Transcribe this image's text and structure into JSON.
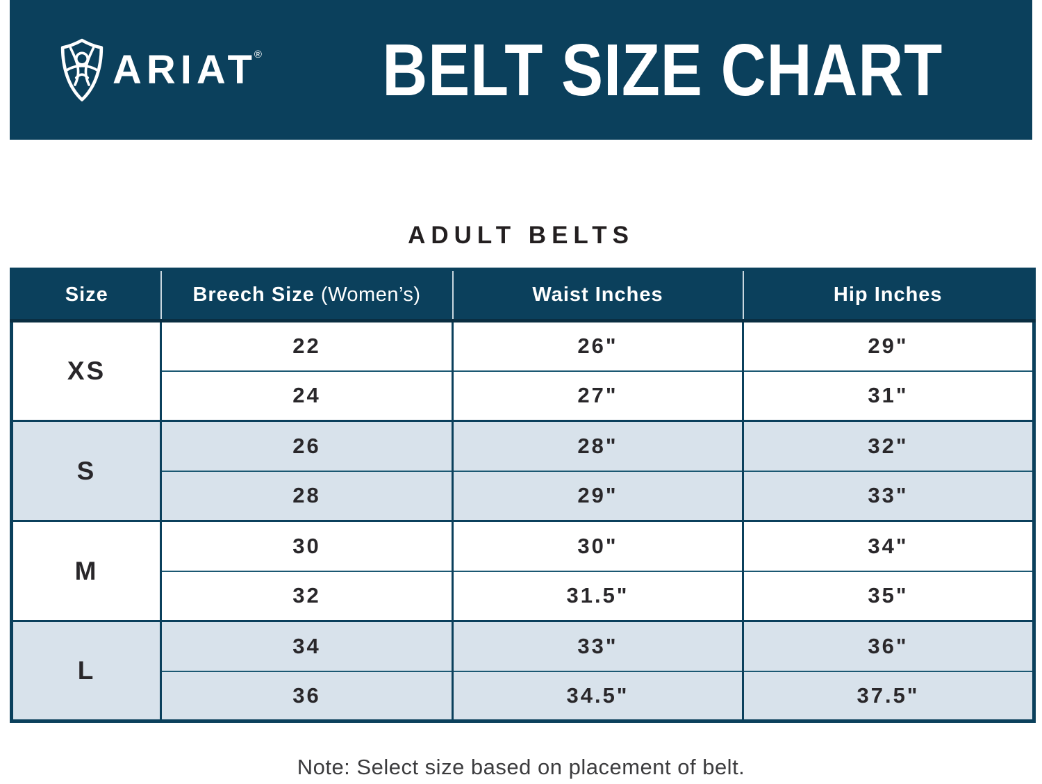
{
  "banner": {
    "brand": "ARIAT",
    "registered": "®",
    "title": "BELT SIZE CHART"
  },
  "section_title": "ADULT BELTS",
  "table": {
    "columns": [
      {
        "label": "Size"
      },
      {
        "label": "Breech Size",
        "sub": "(Women’s)"
      },
      {
        "label": "Waist Inches"
      },
      {
        "label": "Hip Inches"
      }
    ],
    "groups": [
      {
        "size": "XS",
        "shaded": false,
        "rows": [
          {
            "breech": "22",
            "waist": "26\"",
            "hip": "29\""
          },
          {
            "breech": "24",
            "waist": "27\"",
            "hip": "31\""
          }
        ]
      },
      {
        "size": "S",
        "shaded": true,
        "rows": [
          {
            "breech": "26",
            "waist": "28\"",
            "hip": "32\""
          },
          {
            "breech": "28",
            "waist": "29\"",
            "hip": "33\""
          }
        ]
      },
      {
        "size": "M",
        "shaded": false,
        "rows": [
          {
            "breech": "30",
            "waist": "30\"",
            "hip": "34\""
          },
          {
            "breech": "32",
            "waist": "31.5\"",
            "hip": "35\""
          }
        ]
      },
      {
        "size": "L",
        "shaded": true,
        "rows": [
          {
            "breech": "34",
            "waist": "33\"",
            "hip": "36\""
          },
          {
            "breech": "36",
            "waist": "34.5\"",
            "hip": "37.5\""
          }
        ]
      }
    ]
  },
  "note": "Note: Select size based on placement of belt.",
  "colors": {
    "teal": "#0B405C",
    "header_divider": "#EBF2F6",
    "header_bottom": "#0A2E42",
    "shaded_row": "#D8E2EB",
    "text_dark": "#29272A",
    "note_text": "#3C3C3E"
  },
  "chart_data": {
    "type": "table",
    "title": "BELT SIZE CHART",
    "subtitle": "ADULT BELTS",
    "columns": [
      "Size",
      "Breech Size (Women’s)",
      "Waist Inches",
      "Hip Inches"
    ],
    "rows": [
      [
        "XS",
        "22",
        "26\"",
        "29\""
      ],
      [
        "XS",
        "24",
        "27\"",
        "31\""
      ],
      [
        "S",
        "26",
        "28\"",
        "32\""
      ],
      [
        "S",
        "28",
        "29\"",
        "33\""
      ],
      [
        "M",
        "30",
        "30\"",
        "34\""
      ],
      [
        "M",
        "32",
        "31.5\"",
        "35\""
      ],
      [
        "L",
        "34",
        "33\"",
        "36\""
      ],
      [
        "L",
        "36",
        "34.5\"",
        "37.5\""
      ]
    ],
    "note": "Note: Select size based on placement of belt."
  }
}
